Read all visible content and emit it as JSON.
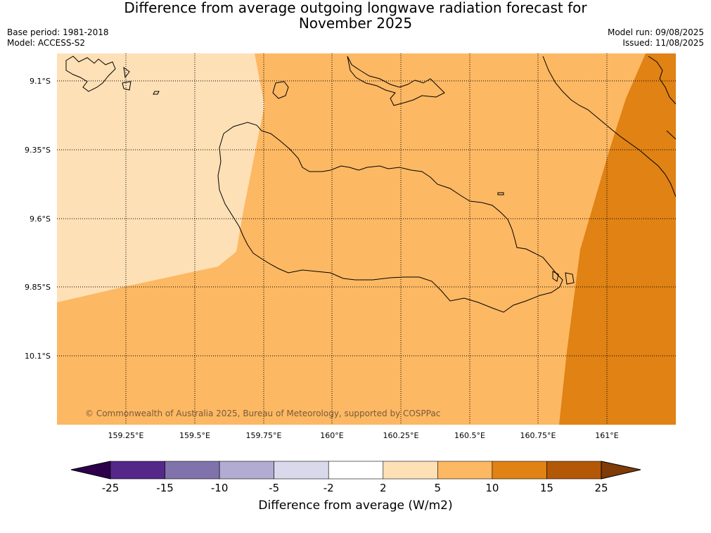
{
  "title_line1": "Difference from average outgoing longwave radiation forecast for",
  "title_line2": "November 2025",
  "base_period": "Base period: 1981-2018",
  "model": "Model: ACCESS-S2",
  "model_run": "Model run: 09/08/2025",
  "issued": "Issued: 11/08/2025",
  "copyright": "© Commonwealth of Australia 2025, Bureau of Meteorology, supported by COSPPac",
  "lat_labels": [
    "9.1°S",
    "9.35°S",
    "9.6°S",
    "9.85°S",
    "10.1°S"
  ],
  "lon_labels": [
    "159.25°E",
    "159.5°E",
    "159.75°E",
    "160°E",
    "160.25°E",
    "160.5°E",
    "160.75°E",
    "161°E"
  ],
  "colorbar": {
    "label": "Difference from average (W/m2)",
    "ticks": [
      "-25",
      "-15",
      "-10",
      "-5",
      "-2",
      "2",
      "5",
      "10",
      "15",
      "25"
    ],
    "colors": [
      "#2d004b",
      "#542788",
      "#8073ac",
      "#b2abd2",
      "#d8daeb",
      "#ffffff",
      "#fee0b6",
      "#fdb863",
      "#e08214",
      "#b35806",
      "#7f3b08"
    ]
  }
}
